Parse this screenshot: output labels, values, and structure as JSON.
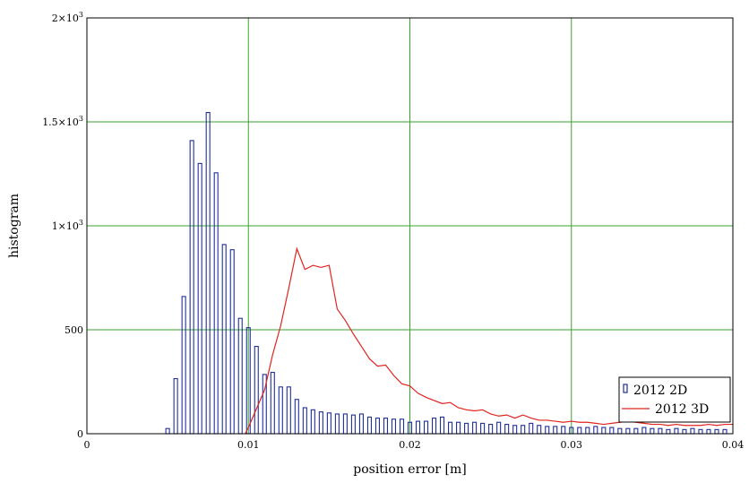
{
  "chart_data": {
    "type": "bar",
    "xlabel": "position error [m]",
    "ylabel": "histogram",
    "xlim": [
      0,
      0.04
    ],
    "ylim": [
      0,
      2000
    ],
    "grid": true,
    "legend_position": "bottom-right",
    "x_ticks": [
      {
        "value": 0,
        "label": "0"
      },
      {
        "value": 0.01,
        "label": "0.01"
      },
      {
        "value": 0.02,
        "label": "0.02"
      },
      {
        "value": 0.03,
        "label": "0.03"
      },
      {
        "value": 0.04,
        "label": "0.04"
      }
    ],
    "y_ticks": [
      {
        "value": 0,
        "label": "0",
        "sup": ""
      },
      {
        "value": 500,
        "label": "500",
        "sup": ""
      },
      {
        "value": 1000,
        "label": "1×10",
        "sup": "3"
      },
      {
        "value": 1500,
        "label": "1.5×10",
        "sup": "3"
      },
      {
        "value": 2000,
        "label": "2×10",
        "sup": "3"
      }
    ],
    "series": [
      {
        "name": "2012 2D",
        "style": "bar",
        "color": "#1f2f9a",
        "x": [
          0.005,
          0.0055,
          0.006,
          0.0065,
          0.007,
          0.0075,
          0.008,
          0.0085,
          0.009,
          0.0095,
          0.01,
          0.0105,
          0.011,
          0.0115,
          0.012,
          0.0125,
          0.013,
          0.0135,
          0.014,
          0.0145,
          0.015,
          0.0155,
          0.016,
          0.0165,
          0.017,
          0.0175,
          0.018,
          0.0185,
          0.019,
          0.0195,
          0.02,
          0.0205,
          0.021,
          0.0215,
          0.022,
          0.0225,
          0.023,
          0.0235,
          0.024,
          0.0245,
          0.025,
          0.0255,
          0.026,
          0.0265,
          0.027,
          0.0275,
          0.028,
          0.0285,
          0.029,
          0.0295,
          0.03,
          0.0305,
          0.031,
          0.0315,
          0.032,
          0.0325,
          0.033,
          0.0335,
          0.034,
          0.0345,
          0.035,
          0.0355,
          0.036,
          0.0365,
          0.037,
          0.0375,
          0.038,
          0.0385,
          0.039,
          0.0395
        ],
        "values": [
          25,
          265,
          660,
          1410,
          1300,
          1545,
          1255,
          910,
          885,
          555,
          510,
          420,
          285,
          295,
          225,
          225,
          165,
          125,
          115,
          105,
          100,
          95,
          95,
          90,
          95,
          80,
          75,
          75,
          70,
          70,
          55,
          60,
          60,
          75,
          80,
          55,
          55,
          50,
          55,
          50,
          45,
          55,
          45,
          40,
          40,
          50,
          40,
          35,
          35,
          35,
          30,
          30,
          30,
          35,
          30,
          30,
          25,
          25,
          25,
          30,
          25,
          25,
          20,
          25,
          20,
          25,
          20,
          20,
          20,
          20
        ]
      },
      {
        "name": "2012 3D",
        "style": "line",
        "color": "#e0241e",
        "x": [
          0.0098,
          0.01,
          0.0105,
          0.011,
          0.0115,
          0.012,
          0.0125,
          0.013,
          0.0135,
          0.014,
          0.0145,
          0.015,
          0.0155,
          0.016,
          0.0165,
          0.017,
          0.0175,
          0.018,
          0.0185,
          0.019,
          0.0195,
          0.02,
          0.0205,
          0.021,
          0.0215,
          0.022,
          0.0225,
          0.023,
          0.0235,
          0.024,
          0.0245,
          0.025,
          0.0255,
          0.026,
          0.0265,
          0.027,
          0.0275,
          0.028,
          0.0285,
          0.029,
          0.0295,
          0.03,
          0.0305,
          0.031,
          0.0315,
          0.032,
          0.0325,
          0.033,
          0.0335,
          0.034,
          0.0345,
          0.035,
          0.0355,
          0.036,
          0.0365,
          0.037,
          0.0375,
          0.038,
          0.0385,
          0.039,
          0.0395,
          0.04
        ],
        "values": [
          0,
          30,
          120,
          210,
          380,
          520,
          700,
          890,
          790,
          810,
          800,
          810,
          600,
          545,
          480,
          420,
          360,
          325,
          330,
          280,
          240,
          230,
          195,
          175,
          160,
          145,
          150,
          125,
          115,
          110,
          115,
          95,
          85,
          90,
          75,
          90,
          75,
          65,
          65,
          60,
          55,
          60,
          55,
          55,
          50,
          45,
          50,
          55,
          60,
          55,
          50,
          45,
          45,
          40,
          45,
          40,
          40,
          40,
          45,
          40,
          45,
          45
        ]
      }
    ]
  }
}
